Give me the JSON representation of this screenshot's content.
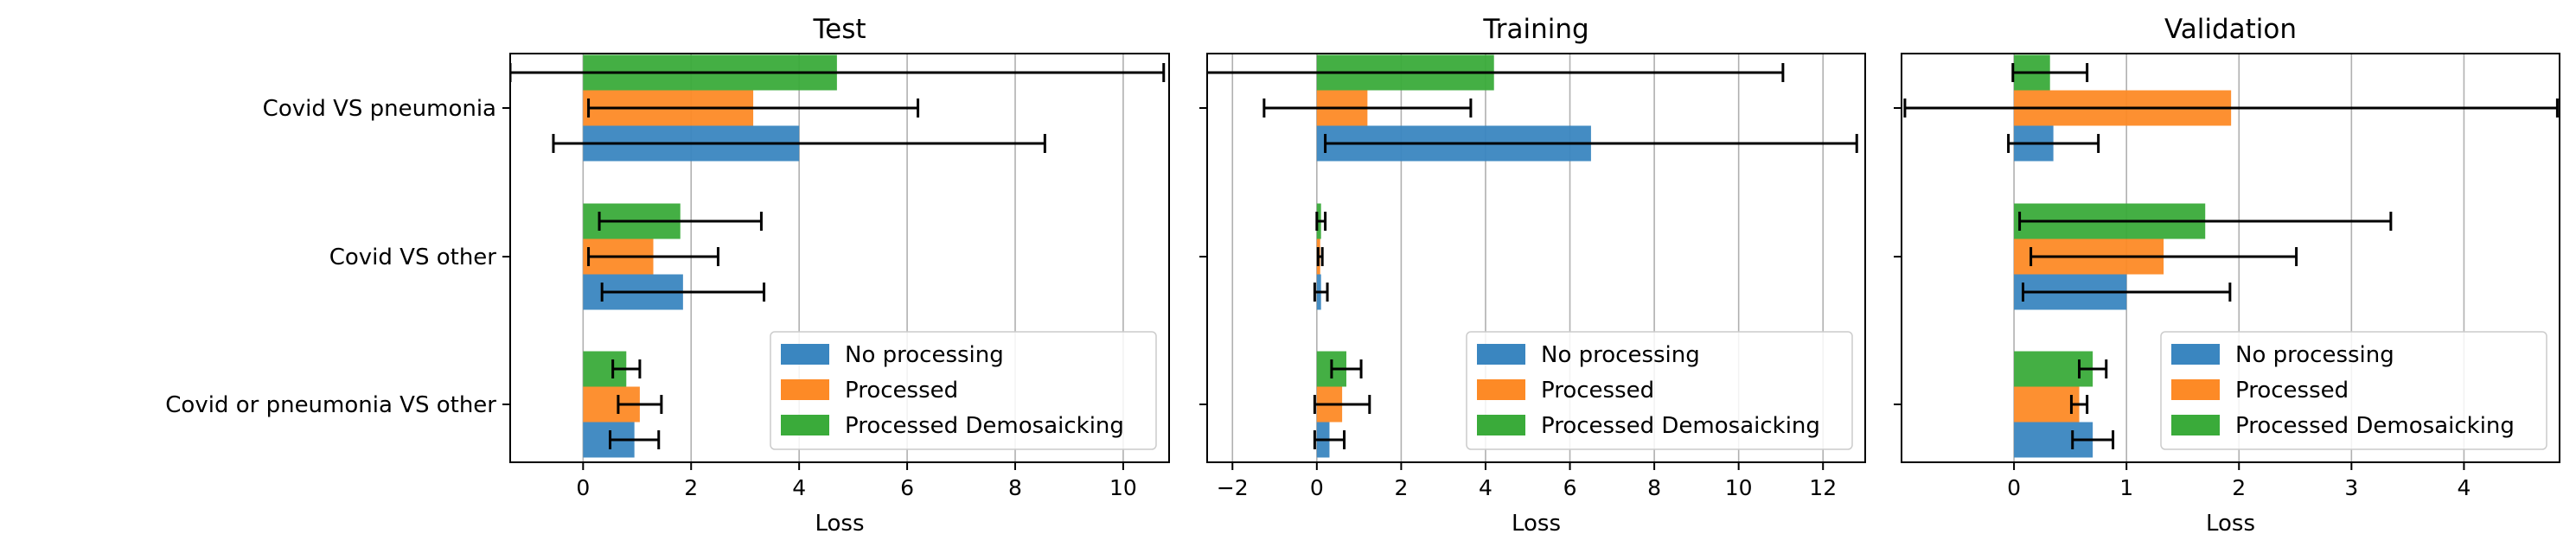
{
  "chart_data": [
    {
      "type": "bar",
      "orientation": "horizontal",
      "title": "Test",
      "xlabel": "Loss",
      "ylabel": "",
      "xlim": [
        -1.35,
        10.85
      ],
      "xticks": [
        0,
        2,
        4,
        6,
        8,
        10
      ],
      "xtick_labels": [
        "0",
        "2",
        "4",
        "6",
        "8",
        "10"
      ],
      "grid": "vertical",
      "legend": "lower-right",
      "categories": [
        "Covid VS pneumonia",
        "Covid VS other",
        "Covid or pneumonia VS other"
      ],
      "series": [
        {
          "name": "No processing",
          "values": [
            4.0,
            1.85,
            0.95
          ],
          "errors": [
            4.55,
            1.5,
            0.45
          ]
        },
        {
          "name": "Processed",
          "values": [
            3.15,
            1.3,
            1.05
          ],
          "errors": [
            3.05,
            1.2,
            0.4
          ]
        },
        {
          "name": "Processed Demosaicking",
          "values": [
            4.7,
            1.8,
            0.8
          ],
          "errors": [
            6.05,
            1.5,
            0.25
          ]
        }
      ]
    },
    {
      "type": "bar",
      "orientation": "horizontal",
      "title": "Training",
      "xlabel": "Loss",
      "ylabel": "",
      "xlim": [
        -2.6,
        13.0
      ],
      "xticks": [
        -2,
        0,
        2,
        4,
        6,
        8,
        10,
        12
      ],
      "xtick_labels": [
        "−2",
        "0",
        "2",
        "4",
        "6",
        "8",
        "10",
        "12"
      ],
      "grid": "vertical",
      "legend": "lower-right",
      "categories": [
        "Covid VS pneumonia",
        "Covid VS other",
        "Covid or pneumonia VS other"
      ],
      "series": [
        {
          "name": "No processing",
          "values": [
            6.5,
            0.1,
            0.3
          ],
          "errors": [
            6.3,
            0.15,
            0.35
          ]
        },
        {
          "name": "Processed",
          "values": [
            1.2,
            0.08,
            0.6
          ],
          "errors": [
            2.45,
            0.05,
            0.65
          ]
        },
        {
          "name": "Processed Demosaicking",
          "values": [
            4.2,
            0.1,
            0.7
          ],
          "errors": [
            6.85,
            0.1,
            0.35
          ]
        }
      ]
    },
    {
      "type": "bar",
      "orientation": "horizontal",
      "title": "Validation",
      "xlabel": "Loss",
      "ylabel": "",
      "xlim": [
        -1.0,
        4.85
      ],
      "xticks": [
        0,
        1,
        2,
        3,
        4
      ],
      "xtick_labels": [
        "0",
        "1",
        "2",
        "3",
        "4"
      ],
      "grid": "vertical",
      "legend": "lower-right",
      "categories": [
        "Covid VS pneumonia",
        "Covid VS other",
        "Covid or pneumonia VS other"
      ],
      "series": [
        {
          "name": "No processing",
          "values": [
            0.35,
            1.0,
            0.7
          ],
          "errors": [
            0.4,
            0.92,
            0.18
          ]
        },
        {
          "name": "Processed",
          "values": [
            1.93,
            1.33,
            0.58
          ],
          "errors": [
            2.9,
            1.18,
            0.07
          ]
        },
        {
          "name": "Processed Demosaicking",
          "values": [
            0.32,
            1.7,
            0.7
          ],
          "errors": [
            0.33,
            1.65,
            0.12
          ]
        }
      ]
    }
  ],
  "colors": {
    "No processing": "#3a86c0",
    "Processed": "#fd8a26",
    "Processed Demosaicking": "#3aab3a",
    "grid": "#b0b0b0",
    "axes": "#000000"
  }
}
